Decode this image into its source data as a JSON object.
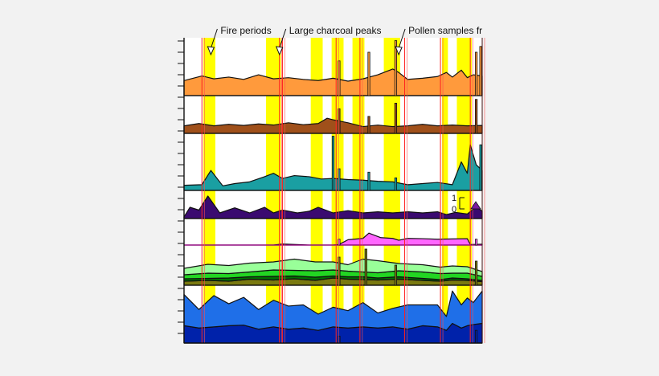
{
  "chart_data": {
    "type": "area",
    "title": "",
    "xlabel": "",
    "ylabel": "",
    "x_range": [
      0,
      100
    ],
    "annotations": [
      {
        "id": "fire",
        "label": "Fire periods",
        "x": 9
      },
      {
        "id": "charcoal",
        "label": "Large charcoal peaks",
        "x": 32
      },
      {
        "id": "pollen",
        "label": "Pollen samples fr",
        "x": 72
      }
    ],
    "highlight_bands": [
      [
        6.5,
        10.5
      ],
      [
        27.5,
        32.5
      ],
      [
        42.5,
        46.5
      ],
      [
        49.5,
        53.5
      ],
      [
        56.5,
        60.5
      ],
      [
        67,
        72.5
      ],
      [
        86.5,
        88.5
      ],
      [
        91.5,
        96.5
      ]
    ],
    "charcoal_lines": [
      6,
      32,
      33,
      51,
      59,
      74,
      86,
      96,
      100
    ],
    "scale_labels": [
      "1",
      "0"
    ],
    "panels": [
      {
        "id": "orange",
        "colors": [
          "#ff9a3c"
        ],
        "series": [
          {
            "x": [
              0,
              6,
              10,
              15,
              20,
              25,
              30,
              35,
              40,
              45,
              50,
              55,
              60,
              65,
              70,
              72,
              75,
              80,
              85,
              88,
              90,
              93,
              95,
              97,
              100
            ],
            "y": [
              2.6,
              3.4,
              2.9,
              3.2,
              2.8,
              3.6,
              2.9,
              3.1,
              2.8,
              2.6,
              3.0,
              2.5,
              2.9,
              3.6,
              4.6,
              4.0,
              2.8,
              3.0,
              3.3,
              4.0,
              3.2,
              4.4,
              3.1,
              3.6,
              3.4
            ]
          }
        ],
        "spikes": [
          {
            "x": 52,
            "v": 6
          },
          {
            "x": 62,
            "v": 7.5
          },
          {
            "x": 71,
            "v": 9.5
          },
          {
            "x": 98,
            "v": 7.5
          },
          {
            "x": 99.5,
            "v": 8.5
          }
        ]
      },
      {
        "id": "brown",
        "colors": [
          "#a0501a"
        ],
        "series": [
          {
            "x": [
              0,
              5,
              10,
              15,
              20,
              25,
              30,
              35,
              40,
              45,
              48,
              50,
              55,
              60,
              65,
              70,
              75,
              80,
              85,
              90,
              95,
              100
            ],
            "y": [
              2.0,
              2.6,
              2.0,
              2.4,
              2.1,
              2.5,
              2.2,
              2.8,
              2.3,
              2.6,
              4.0,
              3.6,
              2.8,
              1.8,
              2.2,
              1.8,
              2.0,
              2.4,
              2.0,
              2.2,
              2.0,
              2.1
            ]
          }
        ],
        "spikes": [
          {
            "x": 52,
            "v": 6.5
          },
          {
            "x": 62,
            "v": 4.5
          },
          {
            "x": 71,
            "v": 8
          },
          {
            "x": 98,
            "v": 9
          }
        ]
      },
      {
        "id": "teal",
        "colors": [
          "#1a9fa2"
        ],
        "series": [
          {
            "x": [
              0,
              6,
              9,
              13,
              17,
              22,
              27,
              30,
              33,
              37,
              42,
              46,
              50,
              55,
              60,
              65,
              70,
              75,
              80,
              85,
              90,
              93,
              95,
              96,
              98,
              100
            ],
            "y": [
              0.9,
              1.0,
              3.5,
              0.8,
              1.2,
              1.5,
              2.4,
              3.0,
              2.1,
              2.6,
              2.4,
              2.0,
              2.1,
              1.9,
              1.8,
              1.6,
              1.5,
              1.0,
              1.2,
              1.4,
              1.0,
              5.0,
              3.0,
              8.0,
              4.5,
              3.5
            ]
          }
        ],
        "spikes": [
          {
            "x": 50,
            "v": 9.5
          },
          {
            "x": 52,
            "v": 3.8
          },
          {
            "x": 62,
            "v": 3.2
          },
          {
            "x": 71,
            "v": 2.2
          },
          {
            "x": 99.5,
            "v": 8
          }
        ]
      },
      {
        "id": "purple",
        "colors": [
          "#3a0a70"
        ],
        "series": [
          {
            "x": [
              0,
              2,
              5,
              8,
              12,
              17,
              22,
              27,
              30,
              33,
              38,
              42,
              45,
              50,
              55,
              60,
              65,
              70,
              75,
              80,
              85,
              88,
              91,
              95,
              98,
              100
            ],
            "y": [
              0.6,
              4.0,
              3.0,
              8.0,
              2.0,
              3.8,
              2.0,
              4.0,
              2.0,
              3.0,
              2.0,
              2.6,
              4.0,
              2.0,
              2.8,
              2.0,
              2.4,
              2.0,
              2.4,
              2.0,
              2.4,
              1.4,
              2.2,
              1.6,
              4.2,
              2.6
            ]
          }
        ],
        "spikes": []
      },
      {
        "id": "pink",
        "colors": [
          "#ff66ff"
        ],
        "baseline": 0.0,
        "series": [
          {
            "x": [
              0,
              30,
              33,
              42,
              50,
              52,
              55,
              60,
              62,
              66,
              70,
              72,
              75,
              80,
              85,
              90,
              95,
              96,
              100
            ],
            "y": [
              0,
              0,
              0.4,
              0,
              0,
              0.2,
              2.0,
              2.5,
              4.5,
              2.8,
              2.5,
              1.8,
              2.5,
              2.4,
              2.2,
              2.3,
              2.4,
              0.2,
              0.3
            ]
          }
        ],
        "spikes": [
          {
            "x": 52,
            "v": 2.2
          },
          {
            "x": 98,
            "v": 2.2
          }
        ],
        "no_fill_before": 50
      },
      {
        "id": "green",
        "colors": [
          "#7a7a10",
          "#007000",
          "#22d622",
          "#99ff99"
        ],
        "series": [
          {
            "x": [
              0,
              8,
              15,
              22,
              30,
              37,
              44,
              50,
              55,
              60,
              65,
              72,
              80,
              86,
              90,
              95,
              100
            ],
            "y": [
              1.0,
              1.2,
              1.0,
              1.5,
              1.3,
              1.6,
              1.2,
              1.8,
              1.5,
              1.4,
              1.3,
              1.5,
              1.2,
              1.0,
              1.3,
              1.2,
              0.9
            ]
          },
          {
            "x": [
              0,
              8,
              15,
              22,
              30,
              37,
              44,
              50,
              55,
              60,
              65,
              72,
              80,
              86,
              90,
              95,
              100
            ],
            "y": [
              0.6,
              0.5,
              0.8,
              0.6,
              0.9,
              0.7,
              0.8,
              0.5,
              0.6,
              0.7,
              0.5,
              0.6,
              0.5,
              0.4,
              0.5,
              0.4,
              0.3
            ]
          },
          {
            "x": [
              0,
              8,
              15,
              22,
              30,
              37,
              44,
              50,
              55,
              60,
              65,
              72,
              80,
              86,
              90,
              95,
              100
            ],
            "y": [
              1.0,
              1.3,
              1.1,
              1.2,
              1.6,
              1.4,
              1.6,
              1.5,
              1.4,
              1.2,
              1.3,
              1.5,
              1.6,
              1.5,
              1.2,
              1.4,
              1.0
            ]
          },
          {
            "x": [
              0,
              8,
              15,
              22,
              30,
              37,
              44,
              50,
              55,
              60,
              65,
              72,
              80,
              86,
              90,
              95,
              100
            ],
            "y": [
              1.6,
              2.2,
              2.0,
              2.2,
              2.0,
              2.8,
              2.2,
              2.0,
              1.6,
              3.2,
              3.0,
              1.8,
              1.8,
              1.6,
              1.8,
              1.6,
              1.2
            ]
          }
        ],
        "spikes": [
          {
            "x": 52,
            "v": 7
          },
          {
            "x": 61,
            "v": 9
          },
          {
            "x": 71,
            "v": 5
          },
          {
            "x": 98,
            "v": 6
          }
        ]
      },
      {
        "id": "blue",
        "colors": [
          "#0022aa",
          "#1f6fe8"
        ],
        "series": [
          {
            "x": [
              0,
              5,
              10,
              15,
              20,
              25,
              30,
              35,
              40,
              45,
              50,
              55,
              60,
              65,
              70,
              75,
              80,
              85,
              88,
              90,
              93,
              95,
              97,
              100
            ],
            "y": [
              3.0,
              2.6,
              2.8,
              3.0,
              3.1,
              2.4,
              2.8,
              2.4,
              2.6,
              2.2,
              2.8,
              2.6,
              2.8,
              2.6,
              2.8,
              2.4,
              3.0,
              2.8,
              2.2,
              3.4,
              2.6,
              3.0,
              3.2,
              3.4
            ]
          },
          {
            "x": [
              0,
              5,
              10,
              15,
              20,
              25,
              30,
              35,
              40,
              45,
              50,
              55,
              60,
              65,
              70,
              75,
              80,
              85,
              88,
              90,
              93,
              95,
              97,
              100
            ],
            "y": [
              5.4,
              3.2,
              5.4,
              3.8,
              4.8,
              3.4,
              4.6,
              4.0,
              4.0,
              2.8,
              3.4,
              3.0,
              4.2,
              2.6,
              3.2,
              4.2,
              3.6,
              3.8,
              2.4,
              5.6,
              4.0,
              4.8,
              3.8,
              5.6
            ]
          }
        ],
        "spikes": [
          {
            "x": 52,
            "v": 1.2
          },
          {
            "x": 98,
            "v": 2.2
          }
        ]
      }
    ]
  }
}
